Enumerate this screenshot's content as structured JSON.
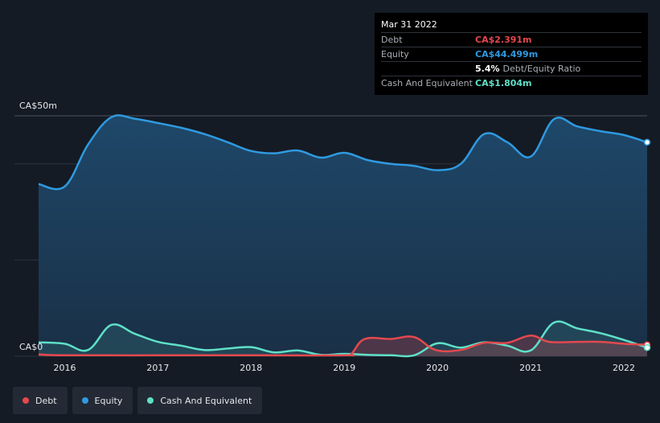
{
  "chart_data": {
    "type": "area",
    "x_range": [
      2015.72,
      2022.25
    ],
    "ylim": [
      0,
      50
    ],
    "y_tick_labels": [
      "CA$50m",
      "CA$0"
    ],
    "x_ticks": [
      2016,
      2017,
      2018,
      2019,
      2020,
      2021,
      2022
    ],
    "x_tick_labels": [
      "2016",
      "2017",
      "2018",
      "2019",
      "2020",
      "2021",
      "2022"
    ],
    "grid": true,
    "legend_position": "bottom-left",
    "series": [
      {
        "name": "Debt",
        "color": "#e5484d",
        "points": [
          [
            2015.72,
            0.4
          ],
          [
            2016.0,
            0.2
          ],
          [
            2017.0,
            0.2
          ],
          [
            2018.0,
            0.2
          ],
          [
            2019.0,
            0.2
          ],
          [
            2019.08,
            0.6
          ],
          [
            2019.22,
            3.6
          ],
          [
            2019.5,
            3.6
          ],
          [
            2019.75,
            4.0
          ],
          [
            2019.98,
            1.3
          ],
          [
            2020.25,
            1.3
          ],
          [
            2020.5,
            2.8
          ],
          [
            2020.75,
            2.8
          ],
          [
            2021.0,
            4.3
          ],
          [
            2021.2,
            3.0
          ],
          [
            2021.5,
            3.0
          ],
          [
            2021.75,
            3.0
          ],
          [
            2022.0,
            2.6
          ],
          [
            2022.25,
            2.391
          ]
        ]
      },
      {
        "name": "Equity",
        "color": "#2f9ae0",
        "points": [
          [
            2015.72,
            35.8
          ],
          [
            2016.0,
            35.3
          ],
          [
            2016.25,
            44.0
          ],
          [
            2016.5,
            49.7
          ],
          [
            2016.75,
            49.4
          ],
          [
            2017.0,
            48.5
          ],
          [
            2017.25,
            47.5
          ],
          [
            2017.5,
            46.2
          ],
          [
            2017.75,
            44.5
          ],
          [
            2018.0,
            42.7
          ],
          [
            2018.25,
            42.2
          ],
          [
            2018.5,
            42.8
          ],
          [
            2018.75,
            41.3
          ],
          [
            2019.0,
            42.3
          ],
          [
            2019.25,
            40.8
          ],
          [
            2019.5,
            40.0
          ],
          [
            2019.75,
            39.6
          ],
          [
            2020.0,
            38.7
          ],
          [
            2020.25,
            40.0
          ],
          [
            2020.5,
            46.2
          ],
          [
            2020.75,
            44.5
          ],
          [
            2021.0,
            41.5
          ],
          [
            2021.25,
            49.3
          ],
          [
            2021.5,
            47.8
          ],
          [
            2021.75,
            46.8
          ],
          [
            2022.0,
            46.0
          ],
          [
            2022.25,
            44.499
          ]
        ]
      },
      {
        "name": "Cash And Equivalent",
        "color": "#5fe0c8",
        "points": [
          [
            2015.72,
            2.9
          ],
          [
            2016.0,
            2.6
          ],
          [
            2016.25,
            1.3
          ],
          [
            2016.5,
            6.5
          ],
          [
            2016.75,
            4.7
          ],
          [
            2017.0,
            3.0
          ],
          [
            2017.25,
            2.2
          ],
          [
            2017.5,
            1.3
          ],
          [
            2017.75,
            1.6
          ],
          [
            2018.0,
            1.9
          ],
          [
            2018.25,
            0.8
          ],
          [
            2018.5,
            1.2
          ],
          [
            2018.75,
            0.3
          ],
          [
            2019.0,
            0.5
          ],
          [
            2019.25,
            0.3
          ],
          [
            2019.5,
            0.2
          ],
          [
            2019.75,
            0.2
          ],
          [
            2020.0,
            2.7
          ],
          [
            2020.25,
            1.8
          ],
          [
            2020.5,
            2.9
          ],
          [
            2020.75,
            2.2
          ],
          [
            2021.0,
            1.2
          ],
          [
            2021.25,
            7.0
          ],
          [
            2021.5,
            5.8
          ],
          [
            2021.75,
            4.8
          ],
          [
            2022.0,
            3.4
          ],
          [
            2022.25,
            1.804
          ]
        ]
      }
    ]
  },
  "tooltip": {
    "date": "Mar 31 2022",
    "debt_label": "Debt",
    "debt_value": "CA$2.391m",
    "equity_label": "Equity",
    "equity_value": "CA$44.499m",
    "ratio_value": "5.4%",
    "ratio_label": "Debt/Equity Ratio",
    "cash_label": "Cash And Equivalent",
    "cash_value": "CA$1.804m"
  },
  "legend": {
    "debt": "Debt",
    "equity": "Equity",
    "cash": "Cash And Equivalent"
  },
  "colors": {
    "debt": "#e5484d",
    "equity": "#2f9ae0",
    "cash": "#5fe0c8",
    "background": "#151b24"
  }
}
